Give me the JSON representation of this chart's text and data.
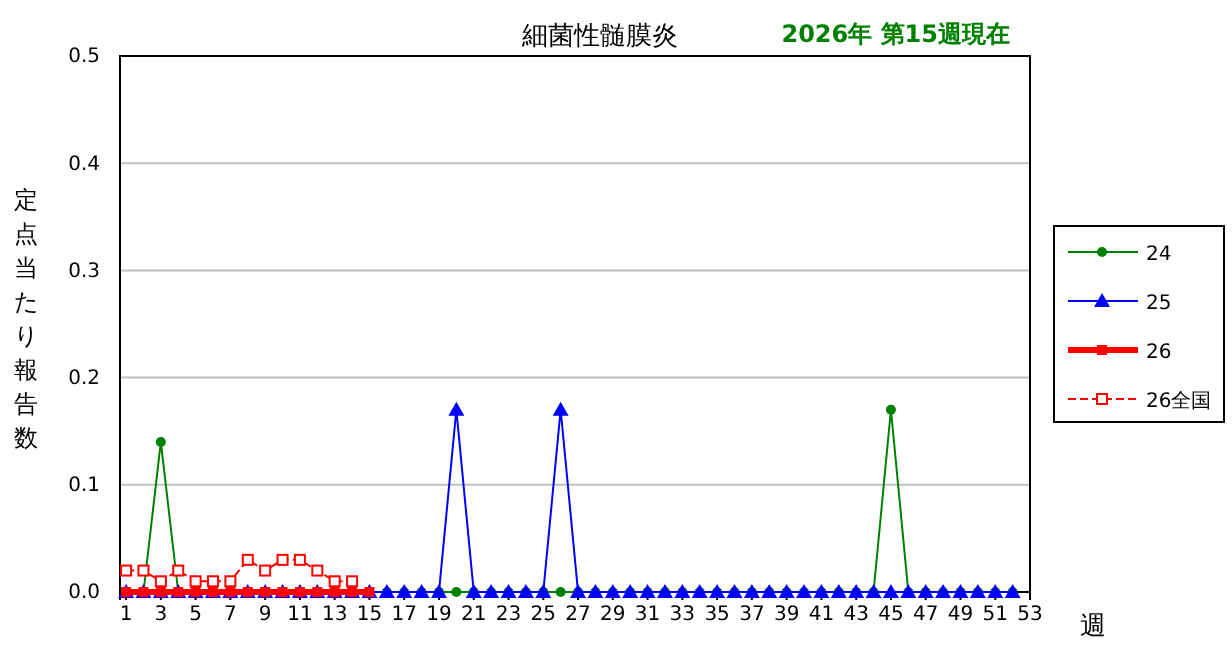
{
  "chart_data": {
    "type": "line",
    "title": "細菌性髄膜炎",
    "subtitle": "2026年 第15週現在",
    "xlabel": "週",
    "ylabel": "定点当たり報告数",
    "x": [
      1,
      2,
      3,
      4,
      5,
      6,
      7,
      8,
      9,
      10,
      11,
      12,
      13,
      14,
      15,
      16,
      17,
      18,
      19,
      20,
      21,
      22,
      23,
      24,
      25,
      26,
      27,
      28,
      29,
      30,
      31,
      32,
      33,
      34,
      35,
      36,
      37,
      38,
      39,
      40,
      41,
      42,
      43,
      44,
      45,
      46,
      47,
      48,
      49,
      50,
      51,
      52
    ],
    "xlim": [
      0.65,
      53
    ],
    "xticks": [
      1,
      3,
      5,
      7,
      9,
      11,
      13,
      15,
      17,
      19,
      21,
      23,
      25,
      27,
      29,
      31,
      33,
      35,
      37,
      39,
      41,
      43,
      45,
      47,
      49,
      51,
      53
    ],
    "ylim": [
      0,
      0.5
    ],
    "yticks": [
      {
        "value": 0,
        "label": "0.0"
      },
      0.1,
      0.2,
      0.3,
      0.4,
      0.5
    ],
    "grid": "y",
    "legend": "right",
    "series": [
      {
        "name": "24",
        "color": "#008000",
        "marker": "circle",
        "line_style": "solid",
        "values": [
          0,
          0,
          0.14,
          0,
          0,
          0,
          0,
          0,
          0,
          0,
          0,
          0,
          0,
          0,
          0,
          0,
          0,
          0,
          0,
          0,
          0,
          0,
          0,
          0,
          0,
          0,
          0,
          0,
          0,
          0,
          0,
          0,
          0,
          0,
          0,
          0,
          0,
          0,
          0,
          0,
          0,
          0,
          0,
          0,
          0.17,
          0,
          0,
          0,
          0,
          0,
          0,
          0
        ]
      },
      {
        "name": "25",
        "color": "#0000ff",
        "marker": "triangle",
        "line_style": "solid",
        "values": [
          0,
          0,
          0,
          0,
          0,
          0,
          0,
          0,
          0,
          0,
          0,
          0,
          0,
          0,
          0,
          0,
          0,
          0,
          0,
          0.17,
          0,
          0,
          0,
          0,
          0,
          0.17,
          0,
          0,
          0,
          0,
          0,
          0,
          0,
          0,
          0,
          0,
          0,
          0,
          0,
          0,
          0,
          0,
          0,
          0,
          0,
          0,
          0,
          0,
          0,
          0,
          0,
          0
        ]
      },
      {
        "name": "26",
        "color": "#ff0000",
        "marker": "square",
        "line_style": "solid",
        "values": [
          0,
          0,
          0,
          0,
          0,
          0,
          0,
          0,
          0,
          0,
          0,
          0,
          0,
          0,
          0,
          null,
          null,
          null,
          null,
          null,
          null,
          null,
          null,
          null,
          null,
          null,
          null,
          null,
          null,
          null,
          null,
          null,
          null,
          null,
          null,
          null,
          null,
          null,
          null,
          null,
          null,
          null,
          null,
          null,
          null,
          null,
          null,
          null,
          null,
          null,
          null,
          null
        ]
      },
      {
        "name": "26全国",
        "color": "#ff0000",
        "marker": "square-open",
        "line_style": "dashed",
        "values": [
          0.02,
          0.02,
          0.01,
          0.02,
          0.01,
          0.01,
          0.01,
          0.03,
          0.02,
          0.03,
          0.03,
          0.02,
          0.01,
          0.01,
          null,
          null,
          null,
          null,
          null,
          null,
          null,
          null,
          null,
          null,
          null,
          null,
          null,
          null,
          null,
          null,
          null,
          null,
          null,
          null,
          null,
          null,
          null,
          null,
          null,
          null,
          null,
          null,
          null,
          null,
          null,
          null,
          null,
          null,
          null,
          null,
          null,
          null
        ]
      }
    ]
  }
}
